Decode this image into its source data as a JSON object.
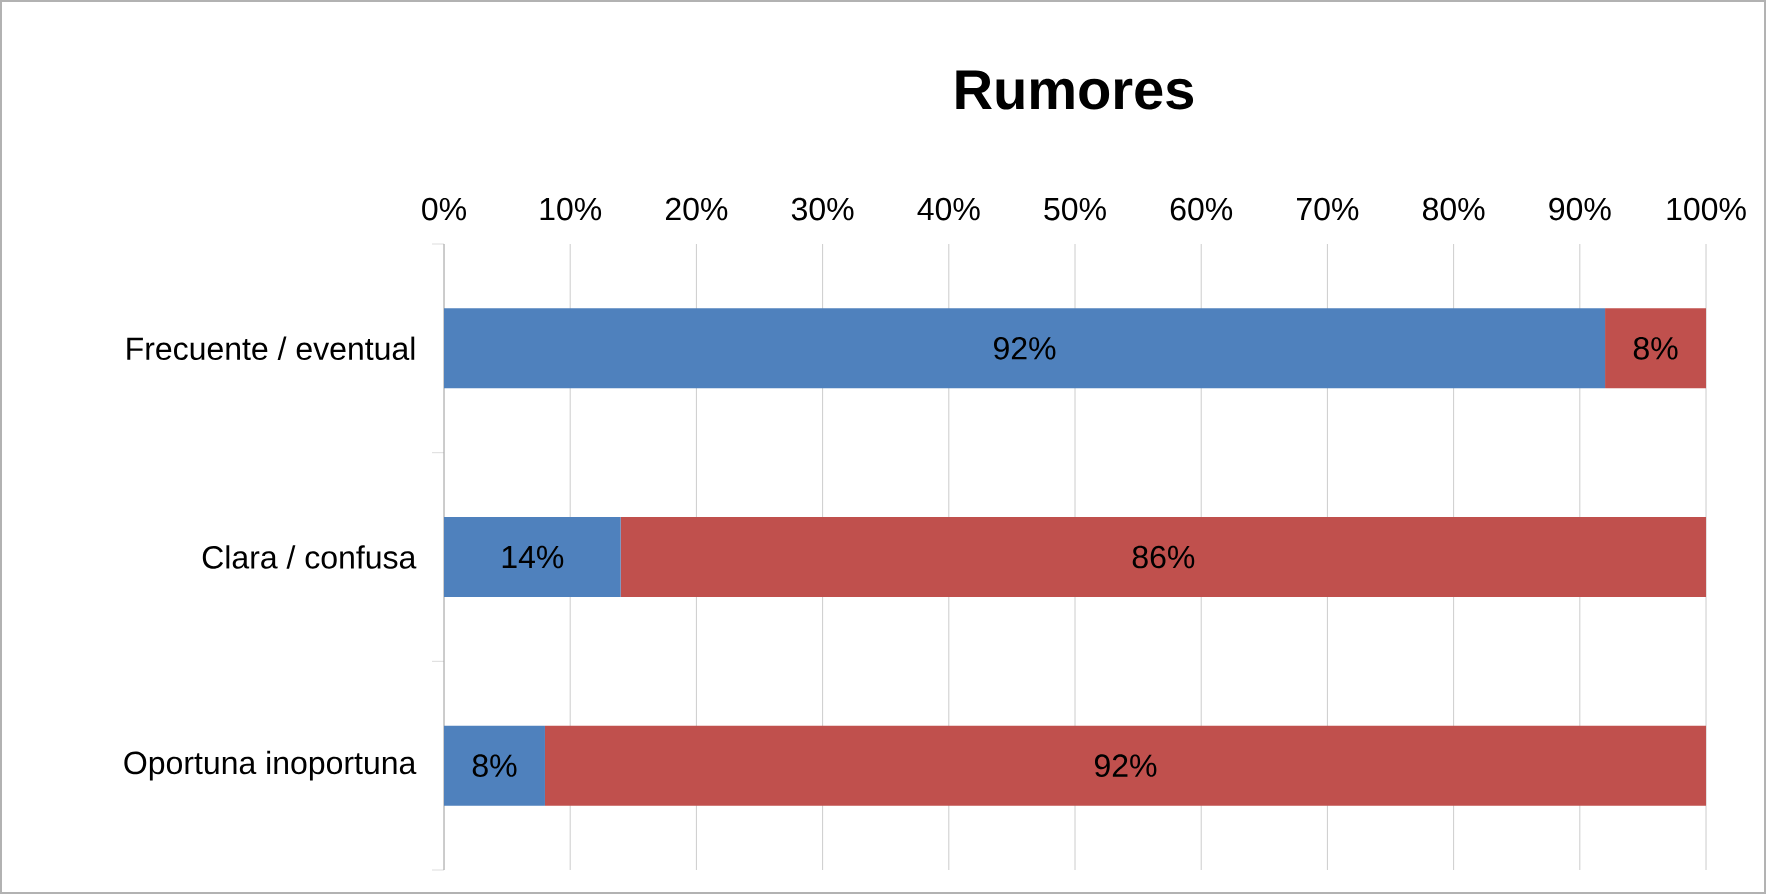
{
  "chart_data": {
    "type": "bar",
    "orientation": "horizontal",
    "stacked": true,
    "title": "Rumores",
    "categories": [
      "Frecuente / eventual",
      "Clara / confusa",
      "Oportuna inoportuna"
    ],
    "series": [
      {
        "color": "#4f81bd",
        "values": [
          92,
          14,
          8
        ],
        "value_labels": [
          "92%",
          "14%",
          "8%"
        ]
      },
      {
        "color": "#c0504d",
        "values": [
          8,
          86,
          92
        ],
        "value_labels": [
          "8%",
          "86%",
          "92%"
        ]
      }
    ],
    "xlim": [
      0,
      100
    ],
    "xticks": [
      {
        "value": 0,
        "label": "0%"
      },
      {
        "value": 10,
        "label": "10%"
      },
      {
        "value": 20,
        "label": "20%"
      },
      {
        "value": 30,
        "label": "30%"
      },
      {
        "value": 40,
        "label": "40%"
      },
      {
        "value": 50,
        "label": "50%"
      },
      {
        "value": 60,
        "label": "60%"
      },
      {
        "value": 70,
        "label": "70%"
      },
      {
        "value": 80,
        "label": "80%"
      },
      {
        "value": 90,
        "label": "90%"
      },
      {
        "value": 100,
        "label": "100%"
      }
    ],
    "grid": "x"
  }
}
